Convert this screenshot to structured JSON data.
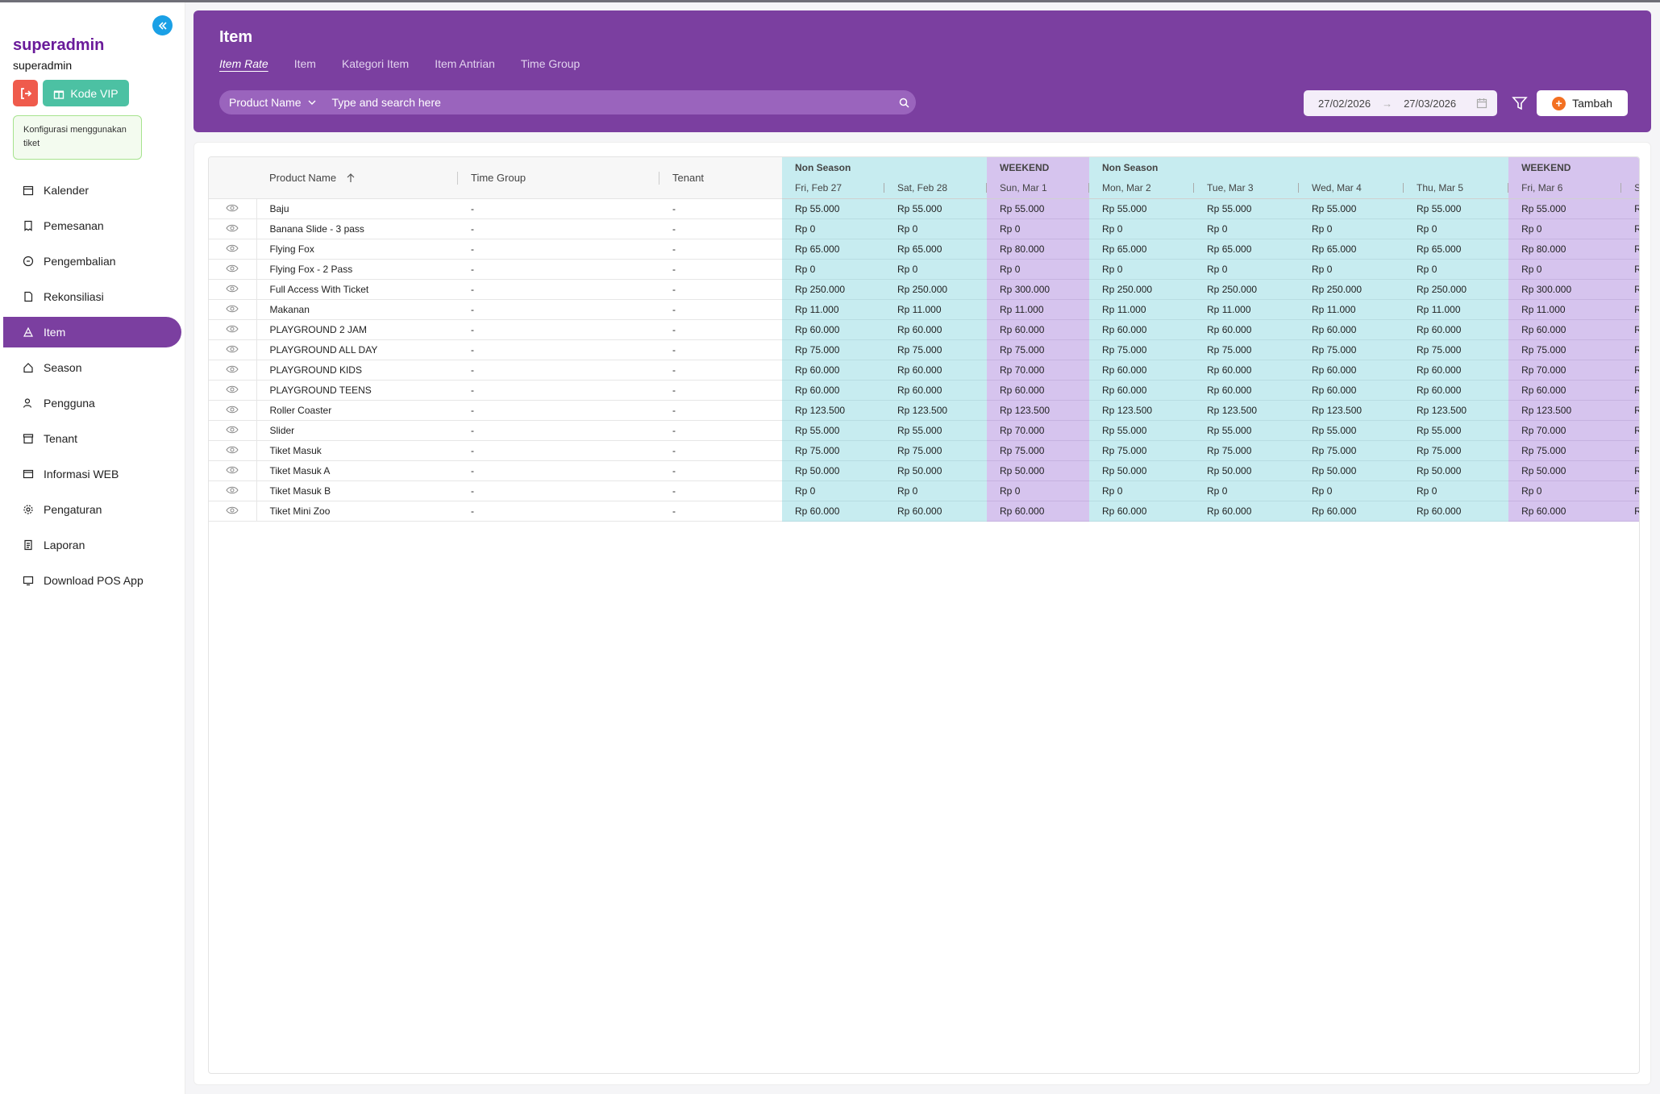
{
  "sidebar": {
    "brand": "superadmin",
    "user": "superadmin",
    "vip_label": "Kode VIP",
    "config_notice": "Konfigurasi menggunakan tiket",
    "nav": [
      {
        "label": "Kalender",
        "icon": "calendar-icon"
      },
      {
        "label": "Pemesanan",
        "icon": "receipt-icon"
      },
      {
        "label": "Pengembalian",
        "icon": "refund-icon"
      },
      {
        "label": "Rekonsiliasi",
        "icon": "document-icon"
      },
      {
        "label": "Item",
        "icon": "item-icon",
        "active": true
      },
      {
        "label": "Season",
        "icon": "home-icon"
      },
      {
        "label": "Pengguna",
        "icon": "user-icon"
      },
      {
        "label": "Tenant",
        "icon": "store-icon"
      },
      {
        "label": "Informasi WEB",
        "icon": "web-icon"
      },
      {
        "label": "Pengaturan",
        "icon": "gear-icon"
      },
      {
        "label": "Laporan",
        "icon": "report-icon"
      },
      {
        "label": "Download POS App",
        "icon": "download-icon"
      }
    ]
  },
  "header": {
    "title": "Item",
    "tabs": [
      "Item Rate",
      "Item",
      "Kategori Item",
      "Item Antrian",
      "Time Group"
    ],
    "active_tab": "Item Rate",
    "search_field": "Product Name",
    "search_placeholder": "Type and search here",
    "date_from": "27/02/2026",
    "date_to": "27/03/2026",
    "add_label": "Tambah"
  },
  "colors": {
    "primary": "#7b3fa0",
    "non_season": "#c7ecf0",
    "weekend": "#d6c4ee",
    "accent_orange": "#f37021",
    "vip_green": "#4cc1a3",
    "logout_red": "#ef5b4c"
  },
  "table": {
    "columns": {
      "product": "Product Name",
      "time_group": "Time Group",
      "tenant": "Tenant"
    },
    "groups": [
      {
        "label": "Non Season",
        "type": "ns",
        "span": 2
      },
      {
        "label": "WEEKEND",
        "type": "wk",
        "span": 1
      },
      {
        "label": "Non Season",
        "type": "ns",
        "span": 4
      },
      {
        "label": "WEEKEND",
        "type": "wk",
        "span": 1
      },
      {
        "label": "",
        "type": "wk",
        "span": 1
      }
    ],
    "dates": [
      {
        "label": "Fri, Feb 27",
        "type": "ns"
      },
      {
        "label": "Sat, Feb 28",
        "type": "ns"
      },
      {
        "label": "Sun, Mar 1",
        "type": "wk"
      },
      {
        "label": "Mon, Mar 2",
        "type": "ns"
      },
      {
        "label": "Tue, Mar 3",
        "type": "ns"
      },
      {
        "label": "Wed, Mar 4",
        "type": "ns"
      },
      {
        "label": "Thu, Mar 5",
        "type": "ns"
      },
      {
        "label": "Fri, Mar 6",
        "type": "wk"
      },
      {
        "label": "S",
        "type": "wk"
      }
    ],
    "rows": [
      {
        "name": "Baju",
        "time_group": "-",
        "tenant": "-",
        "prices": [
          "Rp 55.000",
          "Rp 55.000",
          "Rp 55.000",
          "Rp 55.000",
          "Rp 55.000",
          "Rp 55.000",
          "Rp 55.000",
          "Rp 55.000",
          "R"
        ]
      },
      {
        "name": "Banana Slide - 3 pass",
        "time_group": "-",
        "tenant": "-",
        "prices": [
          "Rp 0",
          "Rp 0",
          "Rp 0",
          "Rp 0",
          "Rp 0",
          "Rp 0",
          "Rp 0",
          "Rp 0",
          "R"
        ]
      },
      {
        "name": "Flying Fox",
        "time_group": "-",
        "tenant": "-",
        "prices": [
          "Rp 65.000",
          "Rp 65.000",
          "Rp 80.000",
          "Rp 65.000",
          "Rp 65.000",
          "Rp 65.000",
          "Rp 65.000",
          "Rp 80.000",
          "R"
        ]
      },
      {
        "name": "Flying Fox - 2 Pass",
        "time_group": "-",
        "tenant": "-",
        "prices": [
          "Rp 0",
          "Rp 0",
          "Rp 0",
          "Rp 0",
          "Rp 0",
          "Rp 0",
          "Rp 0",
          "Rp 0",
          "R"
        ]
      },
      {
        "name": "Full Access With Ticket",
        "time_group": "-",
        "tenant": "-",
        "prices": [
          "Rp 250.000",
          "Rp 250.000",
          "Rp 300.000",
          "Rp 250.000",
          "Rp 250.000",
          "Rp 250.000",
          "Rp 250.000",
          "Rp 300.000",
          "R"
        ]
      },
      {
        "name": "Makanan",
        "time_group": "-",
        "tenant": "-",
        "prices": [
          "Rp 11.000",
          "Rp 11.000",
          "Rp 11.000",
          "Rp 11.000",
          "Rp 11.000",
          "Rp 11.000",
          "Rp 11.000",
          "Rp 11.000",
          "R"
        ]
      },
      {
        "name": "PLAYGROUND 2 JAM",
        "time_group": "-",
        "tenant": "-",
        "prices": [
          "Rp 60.000",
          "Rp 60.000",
          "Rp 60.000",
          "Rp 60.000",
          "Rp 60.000",
          "Rp 60.000",
          "Rp 60.000",
          "Rp 60.000",
          "R"
        ]
      },
      {
        "name": "PLAYGROUND ALL DAY",
        "time_group": "-",
        "tenant": "-",
        "prices": [
          "Rp 75.000",
          "Rp 75.000",
          "Rp 75.000",
          "Rp 75.000",
          "Rp 75.000",
          "Rp 75.000",
          "Rp 75.000",
          "Rp 75.000",
          "R"
        ]
      },
      {
        "name": "PLAYGROUND KIDS",
        "time_group": "-",
        "tenant": "-",
        "prices": [
          "Rp 60.000",
          "Rp 60.000",
          "Rp 70.000",
          "Rp 60.000",
          "Rp 60.000",
          "Rp 60.000",
          "Rp 60.000",
          "Rp 70.000",
          "R"
        ]
      },
      {
        "name": "PLAYGROUND TEENS",
        "time_group": "-",
        "tenant": "-",
        "prices": [
          "Rp 60.000",
          "Rp 60.000",
          "Rp 60.000",
          "Rp 60.000",
          "Rp 60.000",
          "Rp 60.000",
          "Rp 60.000",
          "Rp 60.000",
          "R"
        ]
      },
      {
        "name": "Roller Coaster",
        "time_group": "-",
        "tenant": "-",
        "prices": [
          "Rp 123.500",
          "Rp 123.500",
          "Rp 123.500",
          "Rp 123.500",
          "Rp 123.500",
          "Rp 123.500",
          "Rp 123.500",
          "Rp 123.500",
          "R"
        ]
      },
      {
        "name": "Slider",
        "time_group": "-",
        "tenant": "-",
        "prices": [
          "Rp 55.000",
          "Rp 55.000",
          "Rp 70.000",
          "Rp 55.000",
          "Rp 55.000",
          "Rp 55.000",
          "Rp 55.000",
          "Rp 70.000",
          "R"
        ]
      },
      {
        "name": "Tiket Masuk",
        "time_group": "-",
        "tenant": "-",
        "prices": [
          "Rp 75.000",
          "Rp 75.000",
          "Rp 75.000",
          "Rp 75.000",
          "Rp 75.000",
          "Rp 75.000",
          "Rp 75.000",
          "Rp 75.000",
          "R"
        ]
      },
      {
        "name": "Tiket Masuk A",
        "time_group": "-",
        "tenant": "-",
        "prices": [
          "Rp 50.000",
          "Rp 50.000",
          "Rp 50.000",
          "Rp 50.000",
          "Rp 50.000",
          "Rp 50.000",
          "Rp 50.000",
          "Rp 50.000",
          "R"
        ]
      },
      {
        "name": "Tiket Masuk B",
        "time_group": "-",
        "tenant": "-",
        "prices": [
          "Rp 0",
          "Rp 0",
          "Rp 0",
          "Rp 0",
          "Rp 0",
          "Rp 0",
          "Rp 0",
          "Rp 0",
          "R"
        ]
      },
      {
        "name": "Tiket Mini Zoo",
        "time_group": "-",
        "tenant": "-",
        "prices": [
          "Rp 60.000",
          "Rp 60.000",
          "Rp 60.000",
          "Rp 60.000",
          "Rp 60.000",
          "Rp 60.000",
          "Rp 60.000",
          "Rp 60.000",
          "R"
        ]
      }
    ]
  }
}
